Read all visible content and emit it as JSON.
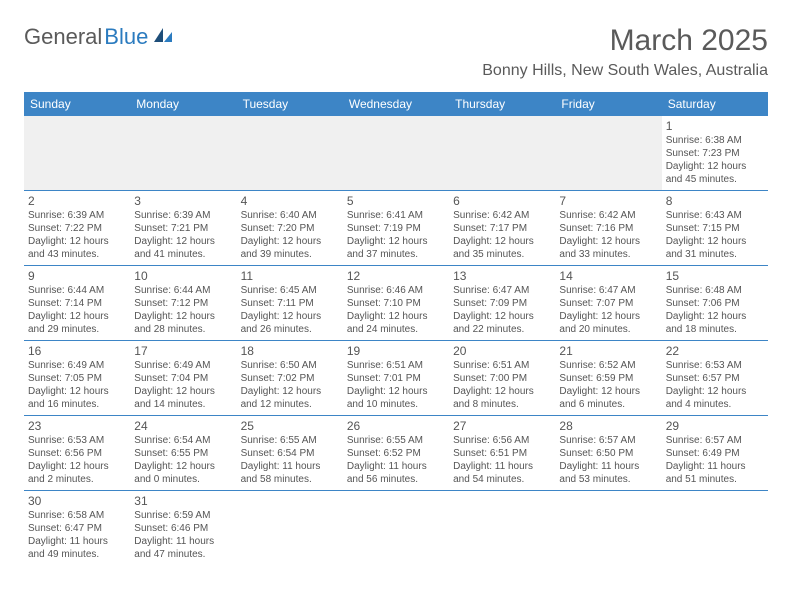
{
  "logo": {
    "general": "General",
    "blue": "Blue"
  },
  "title": "March 2025",
  "location": "Bonny Hills, New South Wales, Australia",
  "headers": [
    "Sunday",
    "Monday",
    "Tuesday",
    "Wednesday",
    "Thursday",
    "Friday",
    "Saturday"
  ],
  "colors": {
    "header_bg": "#3d85c6",
    "header_text": "#ffffff",
    "text": "#555555",
    "border": "#3d85c6",
    "blank_bg": "#f0f0f0"
  },
  "weeks": [
    [
      null,
      null,
      null,
      null,
      null,
      null,
      {
        "n": "1",
        "sunrise": "Sunrise: 6:38 AM",
        "sunset": "Sunset: 7:23 PM",
        "daylight": "Daylight: 12 hours and 45 minutes."
      }
    ],
    [
      {
        "n": "2",
        "sunrise": "Sunrise: 6:39 AM",
        "sunset": "Sunset: 7:22 PM",
        "daylight": "Daylight: 12 hours and 43 minutes."
      },
      {
        "n": "3",
        "sunrise": "Sunrise: 6:39 AM",
        "sunset": "Sunset: 7:21 PM",
        "daylight": "Daylight: 12 hours and 41 minutes."
      },
      {
        "n": "4",
        "sunrise": "Sunrise: 6:40 AM",
        "sunset": "Sunset: 7:20 PM",
        "daylight": "Daylight: 12 hours and 39 minutes."
      },
      {
        "n": "5",
        "sunrise": "Sunrise: 6:41 AM",
        "sunset": "Sunset: 7:19 PM",
        "daylight": "Daylight: 12 hours and 37 minutes."
      },
      {
        "n": "6",
        "sunrise": "Sunrise: 6:42 AM",
        "sunset": "Sunset: 7:17 PM",
        "daylight": "Daylight: 12 hours and 35 minutes."
      },
      {
        "n": "7",
        "sunrise": "Sunrise: 6:42 AM",
        "sunset": "Sunset: 7:16 PM",
        "daylight": "Daylight: 12 hours and 33 minutes."
      },
      {
        "n": "8",
        "sunrise": "Sunrise: 6:43 AM",
        "sunset": "Sunset: 7:15 PM",
        "daylight": "Daylight: 12 hours and 31 minutes."
      }
    ],
    [
      {
        "n": "9",
        "sunrise": "Sunrise: 6:44 AM",
        "sunset": "Sunset: 7:14 PM",
        "daylight": "Daylight: 12 hours and 29 minutes."
      },
      {
        "n": "10",
        "sunrise": "Sunrise: 6:44 AM",
        "sunset": "Sunset: 7:12 PM",
        "daylight": "Daylight: 12 hours and 28 minutes."
      },
      {
        "n": "11",
        "sunrise": "Sunrise: 6:45 AM",
        "sunset": "Sunset: 7:11 PM",
        "daylight": "Daylight: 12 hours and 26 minutes."
      },
      {
        "n": "12",
        "sunrise": "Sunrise: 6:46 AM",
        "sunset": "Sunset: 7:10 PM",
        "daylight": "Daylight: 12 hours and 24 minutes."
      },
      {
        "n": "13",
        "sunrise": "Sunrise: 6:47 AM",
        "sunset": "Sunset: 7:09 PM",
        "daylight": "Daylight: 12 hours and 22 minutes."
      },
      {
        "n": "14",
        "sunrise": "Sunrise: 6:47 AM",
        "sunset": "Sunset: 7:07 PM",
        "daylight": "Daylight: 12 hours and 20 minutes."
      },
      {
        "n": "15",
        "sunrise": "Sunrise: 6:48 AM",
        "sunset": "Sunset: 7:06 PM",
        "daylight": "Daylight: 12 hours and 18 minutes."
      }
    ],
    [
      {
        "n": "16",
        "sunrise": "Sunrise: 6:49 AM",
        "sunset": "Sunset: 7:05 PM",
        "daylight": "Daylight: 12 hours and 16 minutes."
      },
      {
        "n": "17",
        "sunrise": "Sunrise: 6:49 AM",
        "sunset": "Sunset: 7:04 PM",
        "daylight": "Daylight: 12 hours and 14 minutes."
      },
      {
        "n": "18",
        "sunrise": "Sunrise: 6:50 AM",
        "sunset": "Sunset: 7:02 PM",
        "daylight": "Daylight: 12 hours and 12 minutes."
      },
      {
        "n": "19",
        "sunrise": "Sunrise: 6:51 AM",
        "sunset": "Sunset: 7:01 PM",
        "daylight": "Daylight: 12 hours and 10 minutes."
      },
      {
        "n": "20",
        "sunrise": "Sunrise: 6:51 AM",
        "sunset": "Sunset: 7:00 PM",
        "daylight": "Daylight: 12 hours and 8 minutes."
      },
      {
        "n": "21",
        "sunrise": "Sunrise: 6:52 AM",
        "sunset": "Sunset: 6:59 PM",
        "daylight": "Daylight: 12 hours and 6 minutes."
      },
      {
        "n": "22",
        "sunrise": "Sunrise: 6:53 AM",
        "sunset": "Sunset: 6:57 PM",
        "daylight": "Daylight: 12 hours and 4 minutes."
      }
    ],
    [
      {
        "n": "23",
        "sunrise": "Sunrise: 6:53 AM",
        "sunset": "Sunset: 6:56 PM",
        "daylight": "Daylight: 12 hours and 2 minutes."
      },
      {
        "n": "24",
        "sunrise": "Sunrise: 6:54 AM",
        "sunset": "Sunset: 6:55 PM",
        "daylight": "Daylight: 12 hours and 0 minutes."
      },
      {
        "n": "25",
        "sunrise": "Sunrise: 6:55 AM",
        "sunset": "Sunset: 6:54 PM",
        "daylight": "Daylight: 11 hours and 58 minutes."
      },
      {
        "n": "26",
        "sunrise": "Sunrise: 6:55 AM",
        "sunset": "Sunset: 6:52 PM",
        "daylight": "Daylight: 11 hours and 56 minutes."
      },
      {
        "n": "27",
        "sunrise": "Sunrise: 6:56 AM",
        "sunset": "Sunset: 6:51 PM",
        "daylight": "Daylight: 11 hours and 54 minutes."
      },
      {
        "n": "28",
        "sunrise": "Sunrise: 6:57 AM",
        "sunset": "Sunset: 6:50 PM",
        "daylight": "Daylight: 11 hours and 53 minutes."
      },
      {
        "n": "29",
        "sunrise": "Sunrise: 6:57 AM",
        "sunset": "Sunset: 6:49 PM",
        "daylight": "Daylight: 11 hours and 51 minutes."
      }
    ],
    [
      {
        "n": "30",
        "sunrise": "Sunrise: 6:58 AM",
        "sunset": "Sunset: 6:47 PM",
        "daylight": "Daylight: 11 hours and 49 minutes."
      },
      {
        "n": "31",
        "sunrise": "Sunrise: 6:59 AM",
        "sunset": "Sunset: 6:46 PM",
        "daylight": "Daylight: 11 hours and 47 minutes."
      },
      null,
      null,
      null,
      null,
      null
    ]
  ]
}
